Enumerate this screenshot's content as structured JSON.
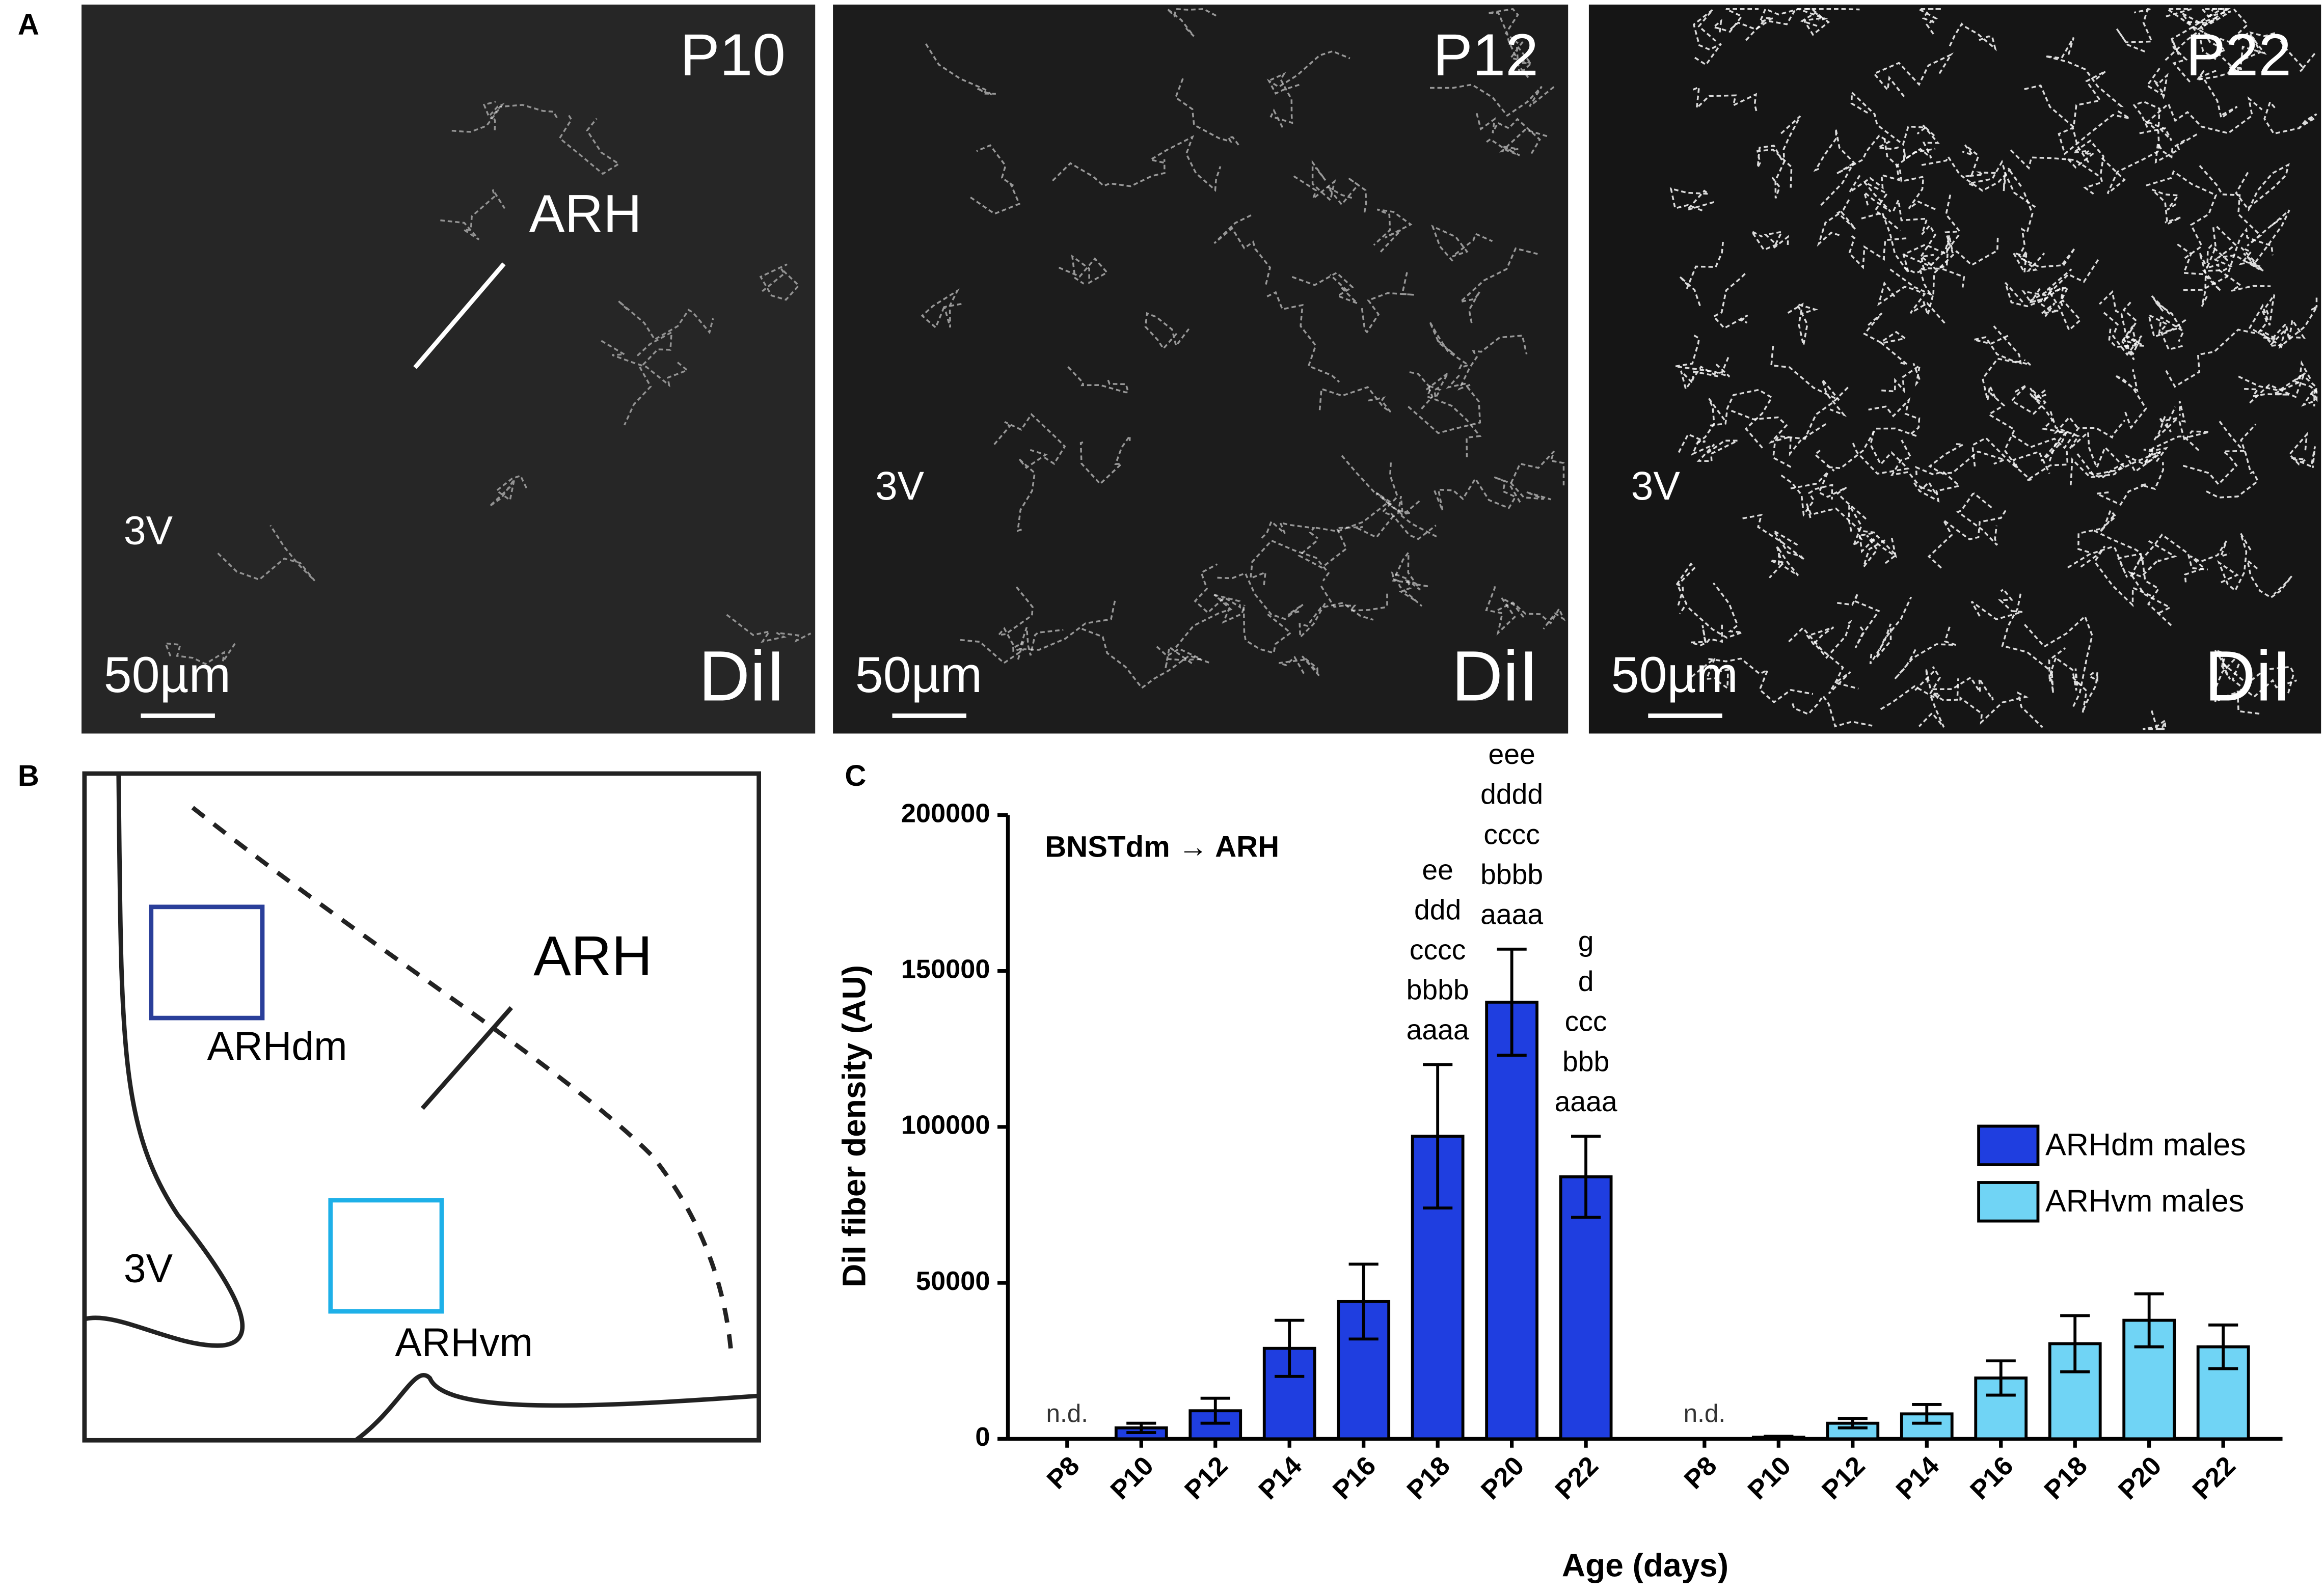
{
  "panels": {
    "a": "A",
    "b": "B",
    "c": "C"
  },
  "micrographs": [
    {
      "age": "P10",
      "region": "ARH",
      "ventricle": "3V",
      "scale": "50µm",
      "stain": "DiI"
    },
    {
      "age": "P12",
      "ventricle": "3V",
      "scale": "50µm",
      "stain": "DiI"
    },
    {
      "age": "P22",
      "ventricle": "3V",
      "scale": "50µm",
      "stain": "DiI"
    }
  ],
  "diagram": {
    "region": "ARH",
    "dorsomedial": "ARHdm",
    "ventromedial": "ARHvm",
    "ventricle": "3V"
  },
  "chart_data": {
    "type": "bar",
    "subtitle": "BNSTdm → ARH",
    "ylabel": "DiI fiber density (AU)",
    "xlabel": "Age (days)",
    "categories": [
      "P8",
      "P10",
      "P12",
      "P14",
      "P16",
      "P18",
      "P20",
      "P22"
    ],
    "ylim": [
      0,
      200000
    ],
    "yticks": [
      0,
      50000,
      100000,
      150000,
      200000
    ],
    "legend": "right",
    "series": [
      {
        "name": "ARHdm males",
        "color": "#1f3ee0",
        "values": [
          null,
          3500,
          9000,
          29000,
          44000,
          97000,
          140000,
          84000
        ],
        "errors": [
          null,
          1500,
          4000,
          9000,
          12000,
          23000,
          17000,
          13000
        ],
        "value_labels": [
          "n.d.",
          null,
          null,
          null,
          null,
          null,
          null,
          null
        ],
        "significance": [
          null,
          null,
          null,
          null,
          null,
          [
            "ee",
            "ddd",
            "cccc",
            "bbbb",
            "aaaa"
          ],
          [
            "eee",
            "dddd",
            "cccc",
            "bbbb",
            "aaaa"
          ],
          [
            "g",
            "d",
            "ccc",
            "bbb",
            "aaaa"
          ]
        ]
      },
      {
        "name": "ARHvm males",
        "color": "#70d4f5",
        "values": [
          null,
          500,
          5000,
          8000,
          19500,
          30500,
          38000,
          29500
        ],
        "errors": [
          null,
          300,
          1500,
          3000,
          5500,
          9000,
          8500,
          7000
        ],
        "value_labels": [
          "n.d.",
          null,
          null,
          null,
          null,
          null,
          null,
          null
        ]
      }
    ]
  }
}
